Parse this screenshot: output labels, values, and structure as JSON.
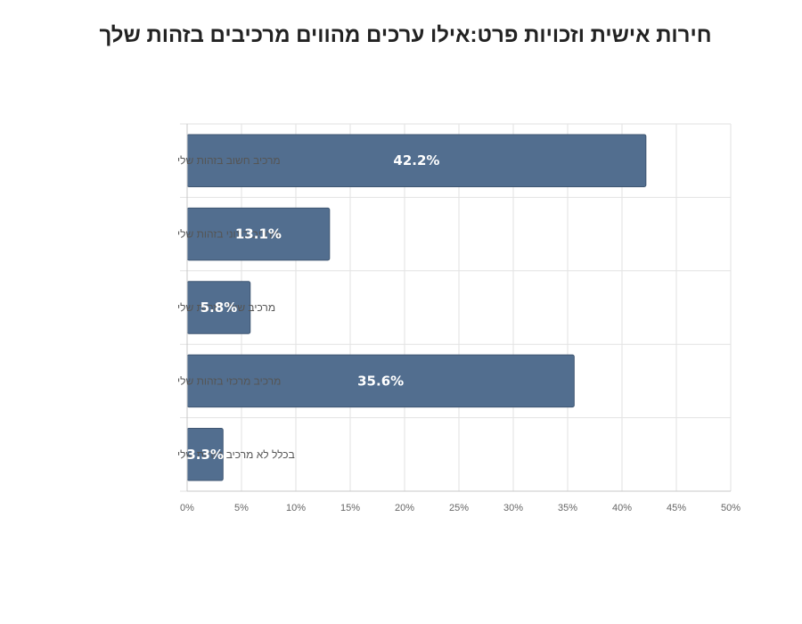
{
  "chart_data": {
    "type": "bar",
    "orientation": "horizontal",
    "title": "חירות אישית וזכויות פרט:אילו ערכים מהווים מרכיבים בזהות שלך",
    "categories": [
      "מרכיב חשוב בזהות שלי",
      "מרכיב בינוני בזהות שלי",
      "מרכיב שולי בזהות שלי",
      "מרכיב מרכזי בזהות שלי",
      "בכלל לא מרכיב בזהות שלי"
    ],
    "values": [
      42.2,
      13.1,
      5.8,
      35.6,
      3.3
    ],
    "data_labels": [
      "42.2%",
      "13.1%",
      "5.8%",
      "35.6%",
      "3.3%"
    ],
    "xlim": [
      0,
      50
    ],
    "x_ticks": [
      0,
      5,
      10,
      15,
      20,
      25,
      30,
      35,
      40,
      45,
      50
    ],
    "x_tick_labels": [
      "0%",
      "5%",
      "10%",
      "15%",
      "20%",
      "25%",
      "30%",
      "35%",
      "40%",
      "45%",
      "50%"
    ],
    "xlabel": "",
    "ylabel": "",
    "grid": true,
    "legend": "none",
    "bar_color": "#526e8f",
    "bar_edge_color": "#3f5672",
    "grid_color": "#e2e2e2"
  }
}
